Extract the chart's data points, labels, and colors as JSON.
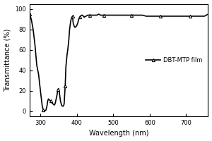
{
  "title": "",
  "xlabel": "Wavelength (nm)",
  "ylabel": "Transmittance (%)",
  "legend_label": "DBT-MTP film",
  "xlim": [
    270,
    760
  ],
  "ylim": [
    -5,
    105
  ],
  "xticks": [
    300,
    400,
    500,
    600,
    700
  ],
  "yticks": [
    0,
    20,
    40,
    60,
    80,
    100
  ],
  "line_color": "black",
  "marker": "^",
  "marker_size": 3,
  "linewidth": 1.2,
  "bg_color": "#ffffff",
  "x": [
    270,
    275,
    280,
    285,
    290,
    295,
    300,
    305,
    308,
    310,
    312,
    315,
    318,
    320,
    322,
    325,
    328,
    330,
    332,
    335,
    338,
    340,
    342,
    345,
    348,
    350,
    352,
    355,
    358,
    360,
    363,
    365,
    368,
    370,
    373,
    375,
    378,
    380,
    383,
    385,
    388,
    390,
    393,
    395,
    398,
    400,
    403,
    405,
    408,
    410,
    413,
    415,
    418,
    420,
    425,
    430,
    435,
    440,
    445,
    450,
    455,
    460,
    465,
    470,
    475,
    480,
    490,
    500,
    510,
    520,
    530,
    540,
    550,
    560,
    570,
    580,
    590,
    600,
    610,
    620,
    630,
    640,
    650,
    660,
    670,
    680,
    690,
    700,
    710,
    720,
    730,
    740,
    750,
    760
  ],
  "y": [
    95,
    90,
    80,
    65,
    45,
    36,
    20,
    5,
    1,
    0,
    0.5,
    1,
    5,
    10,
    12,
    11,
    10,
    9,
    8,
    7,
    6,
    7,
    10,
    15,
    21,
    22,
    18,
    10,
    6,
    5,
    5,
    7,
    25,
    44,
    55,
    60,
    70,
    80,
    88,
    91,
    93,
    86,
    83,
    82,
    83,
    84,
    87,
    90,
    92,
    93,
    94,
    94,
    93,
    92,
    93,
    94,
    94,
    94,
    94,
    94,
    94,
    95,
    94,
    94,
    94,
    94,
    94,
    94,
    94,
    94,
    94,
    94,
    94,
    94,
    94,
    94,
    93,
    93,
    93,
    93,
    93,
    93,
    93,
    93,
    93,
    93,
    93,
    93,
    93,
    93,
    93,
    93,
    93,
    95
  ]
}
